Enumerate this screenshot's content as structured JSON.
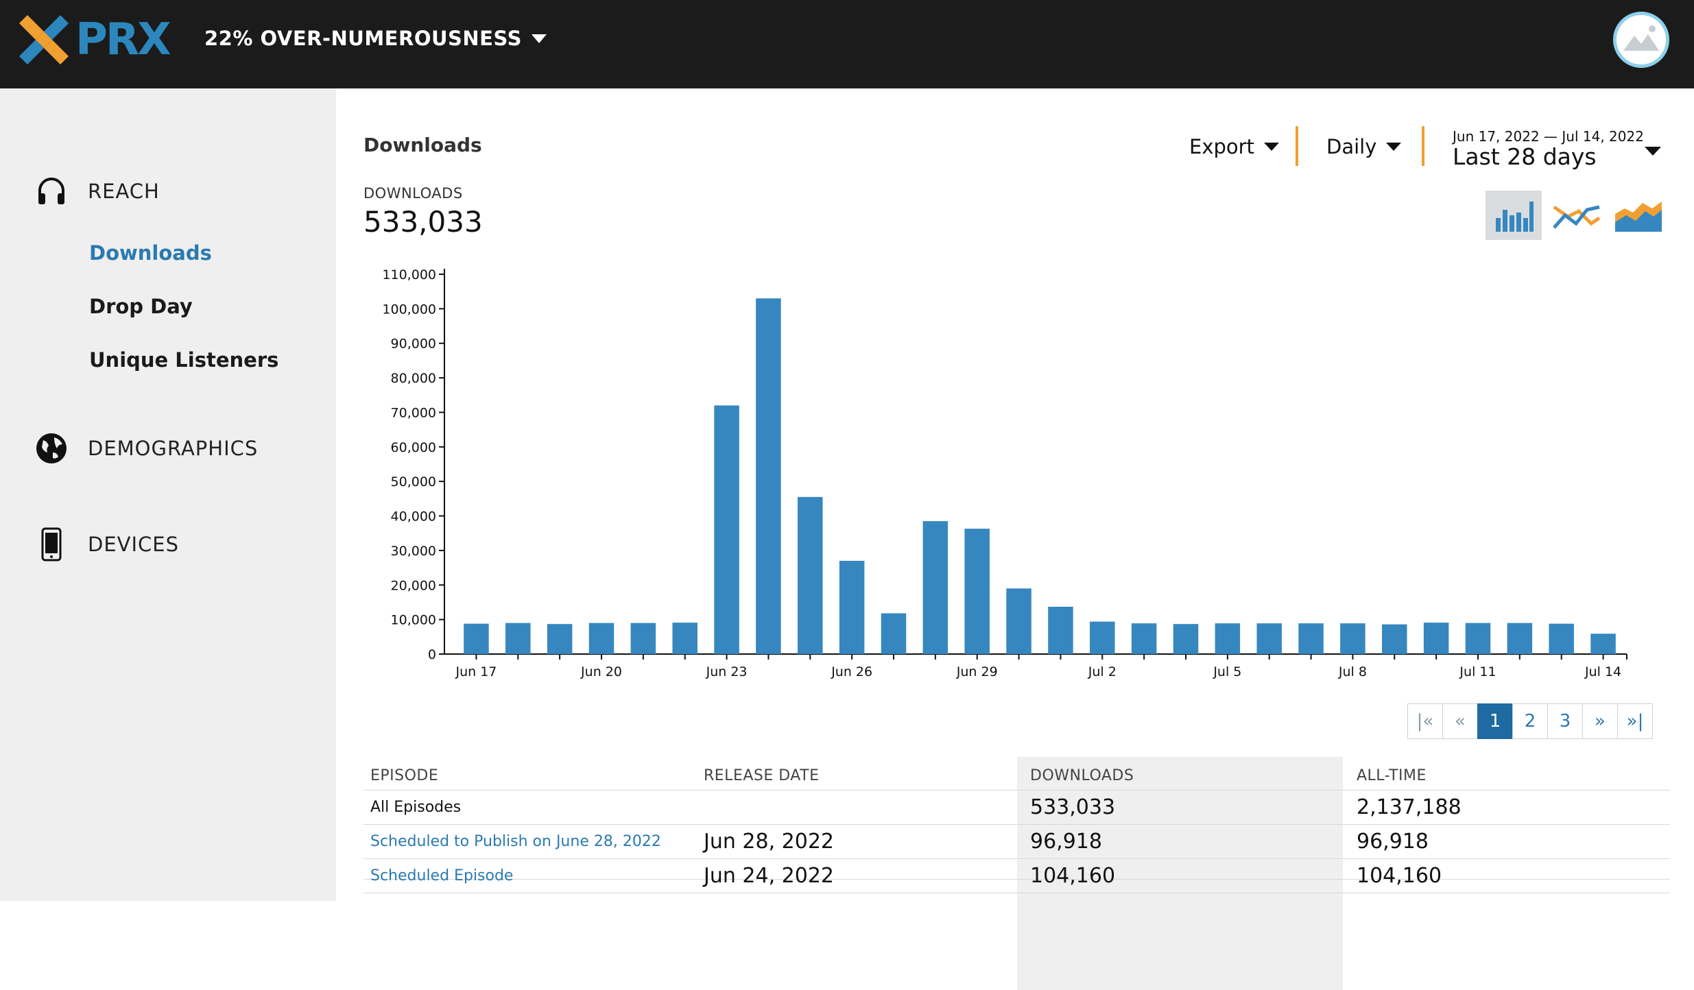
{
  "header": {
    "logo_text": "PRX",
    "podcast_title": "22% OVER-NUMEROUSNESS"
  },
  "sidebar": {
    "sections": [
      {
        "label": "REACH",
        "icon": "headphones-icon"
      },
      {
        "label": "DEMOGRAPHICS",
        "icon": "globe-icon"
      },
      {
        "label": "DEVICES",
        "icon": "phone-icon"
      }
    ],
    "reach_items": [
      {
        "label": "Downloads",
        "active": true
      },
      {
        "label": "Drop Day"
      },
      {
        "label": "Unique Listeners"
      }
    ]
  },
  "main": {
    "page_title": "Downloads",
    "total_label": "DOWNLOADS",
    "total_value": "533,033",
    "export_label": "Export",
    "interval_label": "Daily",
    "range_dates": "Jun 17, 2022 — Jul 14, 2022",
    "range_label": "Last 28 days",
    "chart_types": [
      "bar-chart-icon",
      "line-chart-icon",
      "area-chart-icon"
    ],
    "selected_chart_type": "bar-chart-icon"
  },
  "colors": {
    "header_bg": "#1b1b1b",
    "brand_blue": "#2c87bd",
    "brand_orange": "#f0a032",
    "bar": "#3687bf",
    "link": "#2a7ab0"
  },
  "chart_data": {
    "type": "bar",
    "categories": [
      "Jun 17",
      "Jun 18",
      "Jun 19",
      "Jun 20",
      "Jun 21",
      "Jun 22",
      "Jun 23",
      "Jun 24",
      "Jun 25",
      "Jun 26",
      "Jun 27",
      "Jun 28",
      "Jun 29",
      "Jun 30",
      "Jul 1",
      "Jul 2",
      "Jul 3",
      "Jul 4",
      "Jul 5",
      "Jul 6",
      "Jul 7",
      "Jul 8",
      "Jul 9",
      "Jul 10",
      "Jul 11",
      "Jul 12",
      "Jul 13",
      "Jul 14"
    ],
    "tick_labels": [
      "Jun 17",
      "Jun 20",
      "Jun 23",
      "Jun 26",
      "Jun 29",
      "Jul 2",
      "Jul 5",
      "Jul 8",
      "Jul 11",
      "Jul 14"
    ],
    "values": [
      8800,
      9000,
      8700,
      9000,
      9000,
      9100,
      72000,
      103000,
      45500,
      27000,
      11800,
      38500,
      36300,
      19000,
      13700,
      9400,
      8900,
      8700,
      8900,
      8900,
      8900,
      8900,
      8600,
      9100,
      9000,
      9000,
      8800,
      5900
    ],
    "yticks": [
      "0",
      "10,000",
      "20,000",
      "30,000",
      "40,000",
      "50,000",
      "60,000",
      "70,000",
      "80,000",
      "90,000",
      "100,000",
      "110,000"
    ],
    "ylim": [
      0,
      110000
    ],
    "color": "#3687bf"
  },
  "pagination": {
    "first": "|«",
    "prev": "«",
    "pages": [
      "1",
      "2",
      "3"
    ],
    "current": "1",
    "next": "»",
    "last": "»|"
  },
  "table": {
    "headers": [
      "EPISODE",
      "RELEASE DATE",
      "DOWNLOADS",
      "ALL-TIME"
    ],
    "rows": [
      {
        "episode": "All Episodes",
        "release": "",
        "downloads": "533,033",
        "alltime": "2,137,188"
      },
      {
        "episode": "Scheduled to Publish on June 28, 2022",
        "release": "Jun 28, 2022",
        "downloads": "96,918",
        "alltime": "96,918"
      },
      {
        "episode": "Scheduled Episode",
        "release": "Jun 24, 2022",
        "downloads": "104,160",
        "alltime": "104,160"
      }
    ]
  }
}
